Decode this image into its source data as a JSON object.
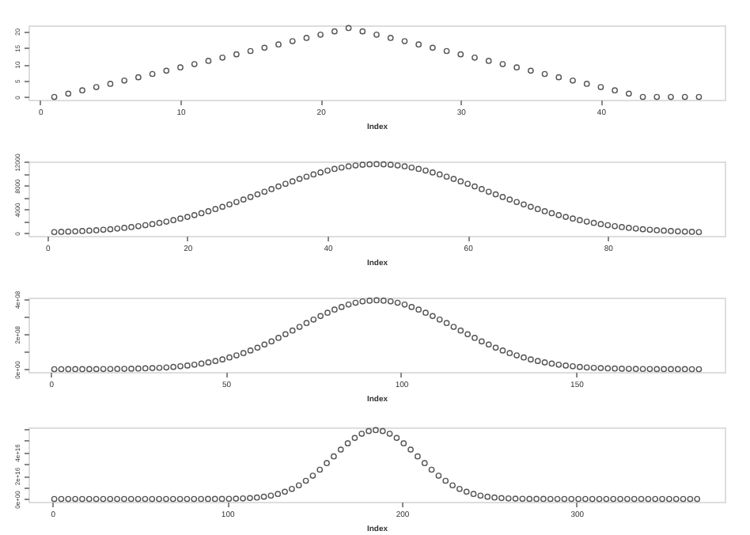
{
  "chart_data": [
    {
      "type": "scatter",
      "xlabel": "Index",
      "marker": "circle",
      "grid": false,
      "xlim": [
        -0.84,
        48.84
      ],
      "xticks": [
        0,
        10,
        20,
        30,
        40
      ],
      "ylim": [
        -0.84,
        21.84
      ],
      "yticks": [
        0,
        5,
        10,
        15,
        20
      ],
      "series": [
        {
          "color": "#555555",
          "x": [
            1,
            2,
            3,
            4,
            5,
            6,
            7,
            8,
            9,
            10,
            11,
            12,
            13,
            14,
            15,
            16,
            17,
            18,
            19,
            20,
            21,
            22,
            23,
            24,
            25,
            26,
            27,
            28,
            29,
            30,
            31,
            32,
            33,
            34,
            35,
            36,
            37,
            38,
            39,
            40,
            41,
            42,
            43,
            44,
            45,
            46,
            47
          ],
          "values": [
            0,
            1,
            2,
            3,
            4,
            5,
            6,
            7,
            8,
            9,
            10,
            11,
            12,
            13,
            14,
            15,
            16,
            17,
            18,
            19,
            20,
            21,
            20,
            19,
            18,
            17,
            16,
            15,
            14,
            13,
            12,
            11,
            10,
            9,
            8,
            7,
            6,
            5,
            4,
            3,
            2,
            1,
            0,
            0,
            0,
            0,
            0
          ]
        }
      ]
    },
    {
      "type": "scatter",
      "xlabel": "Index",
      "marker": "circle",
      "grid": false,
      "xlim": [
        -2.68,
        96.68
      ],
      "xticks": [
        0,
        20,
        40,
        60,
        80
      ],
      "ylim": [
        -464,
        12064
      ],
      "yticks": [
        0,
        {
          "value": 2000,
          "label": null
        },
        4000,
        {
          "value": 6000,
          "label": null
        },
        8000,
        {
          "value": 10000,
          "label": null
        },
        12000
      ],
      "series": [
        {
          "color": "#555555",
          "x": [
            1,
            2,
            3,
            4,
            5,
            6,
            7,
            8,
            9,
            10,
            11,
            12,
            13,
            14,
            15,
            16,
            17,
            18,
            19,
            20,
            21,
            22,
            23,
            24,
            25,
            26,
            27,
            28,
            29,
            30,
            31,
            32,
            33,
            34,
            35,
            36,
            37,
            38,
            39,
            40,
            41,
            42,
            43,
            44,
            45,
            46,
            47,
            48,
            49,
            50,
            51,
            52,
            53,
            54,
            55,
            56,
            57,
            58,
            59,
            60,
            61,
            62,
            63,
            64,
            65,
            66,
            67,
            68,
            69,
            70,
            71,
            72,
            73,
            74,
            75,
            76,
            77,
            78,
            79,
            80,
            81,
            82,
            83,
            84,
            85,
            86,
            87,
            88,
            89,
            90,
            91,
            92,
            93
          ],
          "values": [
            170,
            210,
            250,
            290,
            340,
            410,
            480,
            560,
            650,
            760,
            880,
            1010,
            1160,
            1330,
            1510,
            1710,
            1930,
            2170,
            2440,
            2720,
            3020,
            3340,
            3670,
            4040,
            4420,
            4820,
            5230,
            5650,
            6080,
            6520,
            6960,
            7410,
            7850,
            8290,
            8710,
            9120,
            9500,
            9870,
            10210,
            10520,
            10800,
            11030,
            11240,
            11390,
            11510,
            11580,
            11600,
            11580,
            11510,
            11390,
            11240,
            11030,
            10800,
            10520,
            10210,
            9870,
            9500,
            9120,
            8710,
            8290,
            7850,
            7410,
            6960,
            6520,
            6080,
            5650,
            5230,
            4820,
            4420,
            4040,
            3670,
            3340,
            3020,
            2720,
            2440,
            2170,
            1930,
            1710,
            1510,
            1330,
            1160,
            1010,
            880,
            760,
            650,
            560,
            480,
            410,
            340,
            290,
            250,
            210,
            170
          ]
        }
      ]
    },
    {
      "type": "scatter",
      "xlabel": "Index",
      "marker": "circle",
      "grid": false,
      "xlim": [
        -6.36,
        192.36
      ],
      "xticks": [
        0,
        50,
        100,
        150
      ],
      "ylim": [
        -15760000,
        409760000
      ],
      "yticks": [
        {
          "value": 0,
          "label": "0e+00"
        },
        {
          "value": 100000000,
          "label": null
        },
        {
          "value": 200000000,
          "label": "2e+08"
        },
        {
          "value": 300000000,
          "label": null
        },
        {
          "value": 400000000,
          "label": "4e+08"
        }
      ],
      "series": [
        {
          "color": "#555555",
          "x": [
            1,
            3,
            5,
            7,
            9,
            11,
            13,
            15,
            17,
            19,
            21,
            23,
            25,
            27,
            29,
            31,
            33,
            35,
            37,
            39,
            41,
            43,
            45,
            47,
            49,
            51,
            53,
            55,
            57,
            59,
            61,
            63,
            65,
            67,
            69,
            71,
            73,
            75,
            77,
            79,
            81,
            83,
            85,
            87,
            89,
            91,
            93,
            95,
            97,
            99,
            101,
            103,
            105,
            107,
            109,
            111,
            113,
            115,
            117,
            119,
            121,
            123,
            125,
            127,
            129,
            131,
            133,
            135,
            137,
            139,
            141,
            143,
            145,
            147,
            149,
            151,
            153,
            155,
            157,
            159,
            161,
            163,
            165,
            167,
            169,
            171,
            173,
            175,
            177,
            179,
            181,
            183,
            185
          ],
          "values": [
            100000,
            100000,
            200000,
            200000,
            300000,
            500000,
            600000,
            900000,
            1200000,
            1600000,
            2100000,
            2800000,
            3800000,
            4900000,
            6400000,
            8000000,
            10000000,
            13000000,
            17000000,
            21000000,
            26000000,
            32000000,
            39000000,
            47000000,
            56000000,
            67000000,
            79000000,
            92000000,
            107000000,
            123000000,
            141000000,
            159000000,
            179000000,
            200000000,
            221000000,
            242000000,
            264000000,
            284000000,
            304000000,
            323000000,
            341000000,
            356000000,
            370000000,
            380000000,
            388000000,
            392000000,
            394000000,
            392000000,
            388000000,
            380000000,
            370000000,
            356000000,
            341000000,
            323000000,
            304000000,
            284000000,
            264000000,
            242000000,
            221000000,
            200000000,
            179000000,
            159000000,
            141000000,
            123000000,
            107000000,
            92000000,
            79000000,
            67000000,
            56000000,
            47000000,
            39000000,
            32000000,
            26000000,
            21000000,
            17000000,
            13000000,
            10000000,
            8000000,
            6400000,
            4900000,
            3800000,
            2800000,
            2100000,
            1600000,
            1200000,
            900000,
            600000,
            500000,
            300000,
            200000,
            200000,
            100000,
            100000
          ]
        }
      ]
    },
    {
      "type": "scatter",
      "xlabel": "Index",
      "marker": "circle",
      "grid": false,
      "xlim": [
        -13.76,
        384.76
      ],
      "xticks": [
        0,
        100,
        200,
        300
      ],
      "ylim": [
        -2360000000000000,
        61360000000000000
      ],
      "yticks": [
        {
          "value": 0,
          "label": "0e+00"
        },
        {
          "value": 10000000000000000,
          "label": null
        },
        {
          "value": 20000000000000000,
          "label": "2e+16"
        },
        {
          "value": 30000000000000000,
          "label": null
        },
        {
          "value": 40000000000000000,
          "label": "4e+16"
        },
        {
          "value": 50000000000000000,
          "label": null
        },
        {
          "value": 60000000000000000,
          "label": null
        }
      ],
      "series": [
        {
          "color": "#555555",
          "x": [
            1,
            5,
            9,
            13,
            17,
            21,
            25,
            29,
            33,
            37,
            41,
            45,
            49,
            53,
            57,
            61,
            65,
            69,
            73,
            77,
            81,
            85,
            89,
            93,
            97,
            101,
            105,
            109,
            113,
            117,
            121,
            125,
            129,
            133,
            137,
            141,
            145,
            149,
            153,
            157,
            161,
            165,
            169,
            173,
            177,
            181,
            185,
            189,
            193,
            197,
            201,
            205,
            209,
            213,
            217,
            221,
            225,
            229,
            233,
            237,
            241,
            245,
            249,
            253,
            257,
            261,
            265,
            269,
            273,
            277,
            281,
            285,
            289,
            293,
            297,
            301,
            305,
            309,
            313,
            317,
            321,
            325,
            329,
            333,
            337,
            341,
            345,
            349,
            353,
            357,
            361,
            365,
            369
          ],
          "values": [
            0,
            0,
            0,
            0,
            0,
            0,
            0,
            0,
            0,
            0,
            0,
            0,
            0,
            0,
            0,
            0,
            0,
            0,
            0,
            0,
            0,
            10000000000000,
            30000000000000,
            50000000000000,
            90000000000000,
            160000000000000,
            280000000000000,
            480000000000000,
            780000000000000,
            1250000000000000,
            1940000000000000,
            2900000000000000,
            4300000000000000,
            6200000000000000,
            8600000000000000,
            11700000000000000,
            15600000000000000,
            20000000000000000,
            25100000000000000,
            30700000000000000,
            36500000000000000,
            42300000000000000,
            47700000000000000,
            52300000000000000,
            55900000000000000,
            58200000000000000,
            59000000000000000,
            58200000000000000,
            55900000000000000,
            52300000000000000,
            47700000000000000,
            42300000000000000,
            36500000000000000,
            30700000000000000,
            25100000000000000,
            20000000000000000,
            15600000000000000,
            11700000000000000,
            8600000000000000,
            6200000000000000,
            4300000000000000,
            2900000000000000,
            1940000000000000,
            1250000000000000,
            780000000000000,
            480000000000000,
            280000000000000,
            160000000000000,
            90000000000000,
            50000000000000,
            30000000000000,
            10000000000000,
            0,
            0,
            0,
            0,
            0,
            0,
            0,
            0,
            0,
            0,
            0,
            0,
            0,
            0,
            0,
            0,
            0,
            0,
            0,
            0,
            0
          ]
        }
      ]
    }
  ]
}
